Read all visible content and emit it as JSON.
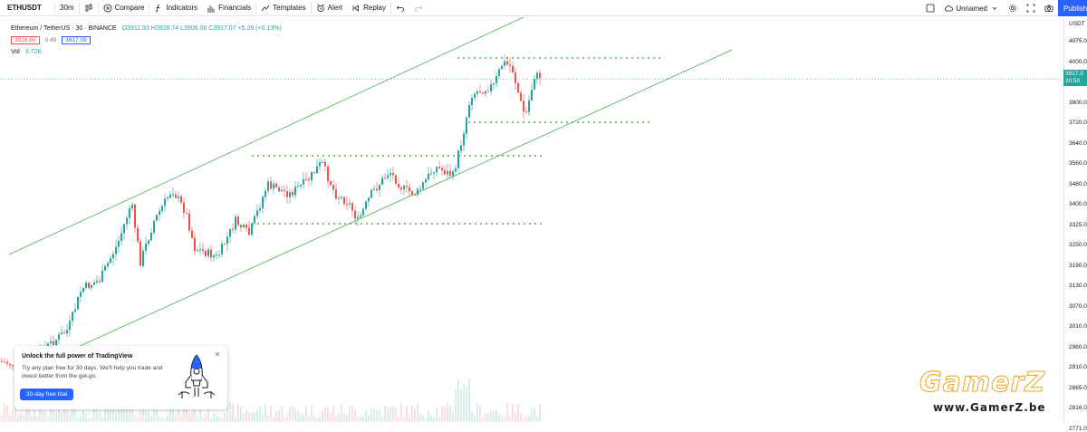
{
  "toolbar": {
    "symbol": "ETHUSDT",
    "interval": "30m",
    "compare": "Compare",
    "indicators": "Indicators",
    "financials": "Financials",
    "templates": "Templates",
    "alert": "Alert",
    "replay": "Replay",
    "layout_name": "Unnamed",
    "publish": "Publish"
  },
  "legend": {
    "title": "Ethereum / TetherUS · 30 · BINANCE",
    "ohlc": "O3911.93 H3928.74 L3900.00 C3917.07 +5.28 (+0.13%)",
    "sell_price": "3916.60",
    "spread": "0.49",
    "buy_price": "3917.09",
    "volume_label": "Vol",
    "volume_value": "3.72K"
  },
  "price_scale": {
    "currency": "USDT",
    "ticks": [
      "4075.0",
      "4000.0",
      "3917.0",
      "3800.0",
      "3720.0",
      "3640.0",
      "3560.0",
      "3480.0",
      "3400.0",
      "3325.0",
      "3250.0",
      "3190.0",
      "3130.0",
      "3070.0",
      "3010.0",
      "2960.0",
      "2910.0",
      "2865.0",
      "2816.0",
      "2771.0"
    ],
    "current_price": "3917.0",
    "countdown": "20:50"
  },
  "promo": {
    "title": "Unlock the full power of TradingView",
    "body": "Try any plan free for 30 days. We'll help you trade and invest better from the get-go.",
    "cta": "30-day free trial"
  },
  "watermark": {
    "brand": "GamerZ",
    "url": "www.GamerZ.be"
  },
  "colors": {
    "up": "#26a69a",
    "down": "#ef5350",
    "channel": "#4caf50",
    "accent": "#2962ff"
  },
  "chart_data": {
    "type": "candlestick",
    "symbol": "ETHUSDT",
    "interval": "30",
    "exchange": "BINANCE",
    "ylim": [
      2771,
      4075
    ],
    "last_close": 3917.07,
    "horizontal_levels": [
      3990,
      3735,
      3605,
      3350
    ],
    "channel": {
      "lower": [
        [
          0,
          2790
        ],
        [
          1,
          4000
        ]
      ],
      "upper": [
        [
          0,
          3300
        ],
        [
          1,
          4250
        ]
      ]
    }
  }
}
